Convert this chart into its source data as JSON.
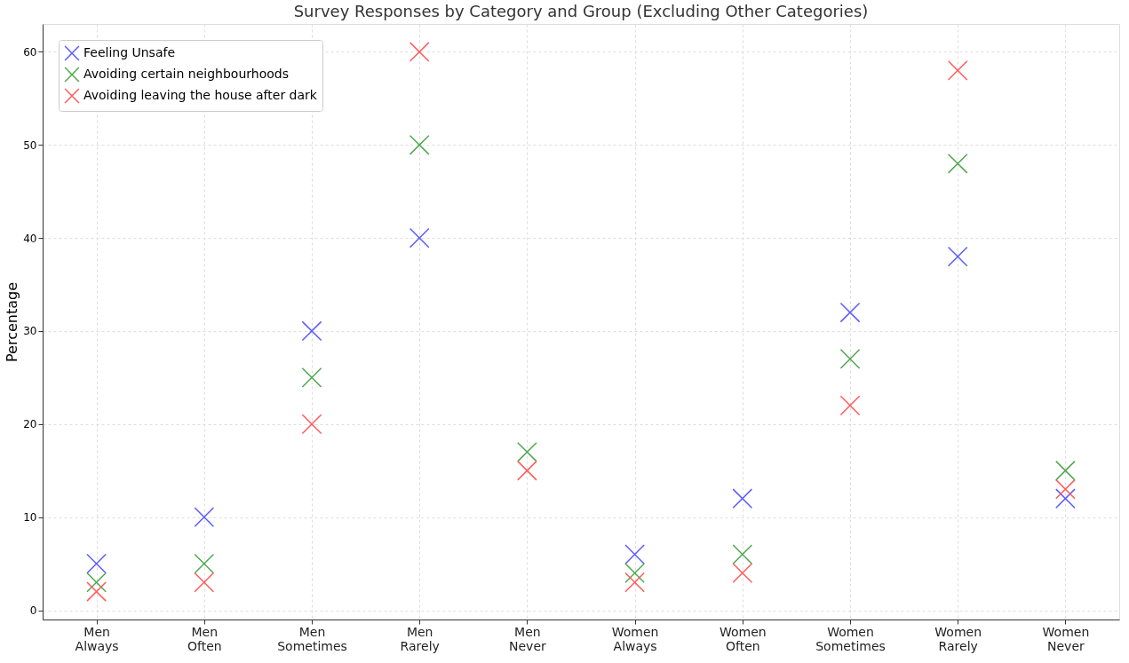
{
  "chart_data": {
    "type": "scatter",
    "title": "Survey Responses by Category and Group (Excluding Other Categories)",
    "ylabel": "Percentage",
    "categories": [
      "Men\nAlways",
      "Men\nOften",
      "Men\nSometimes",
      "Men\nRarely",
      "Men\nNever",
      "Women\nAlways",
      "Women\nOften",
      "Women\nSometimes",
      "Women\nRarely",
      "Women\nNever"
    ],
    "series": [
      {
        "name": "Feeling Unsafe",
        "color": "#5b5bff",
        "values": [
          5,
          10,
          30,
          40,
          null,
          6,
          12,
          32,
          38,
          12
        ]
      },
      {
        "name": "Avoiding certain neighbourhoods",
        "color": "#4fa84f",
        "values": [
          3,
          5,
          25,
          50,
          17,
          4,
          6,
          27,
          48,
          15
        ]
      },
      {
        "name": "Avoiding leaving the house after dark",
        "color": "#ff5b5b",
        "values": [
          2,
          3,
          20,
          60,
          15,
          3,
          4,
          22,
          58,
          13
        ]
      }
    ],
    "ylim": [
      -1,
      63
    ],
    "yticks": [
      0,
      10,
      20,
      30,
      40,
      50,
      60
    ],
    "grid": true,
    "legend": "top left",
    "marker": "cross"
  }
}
